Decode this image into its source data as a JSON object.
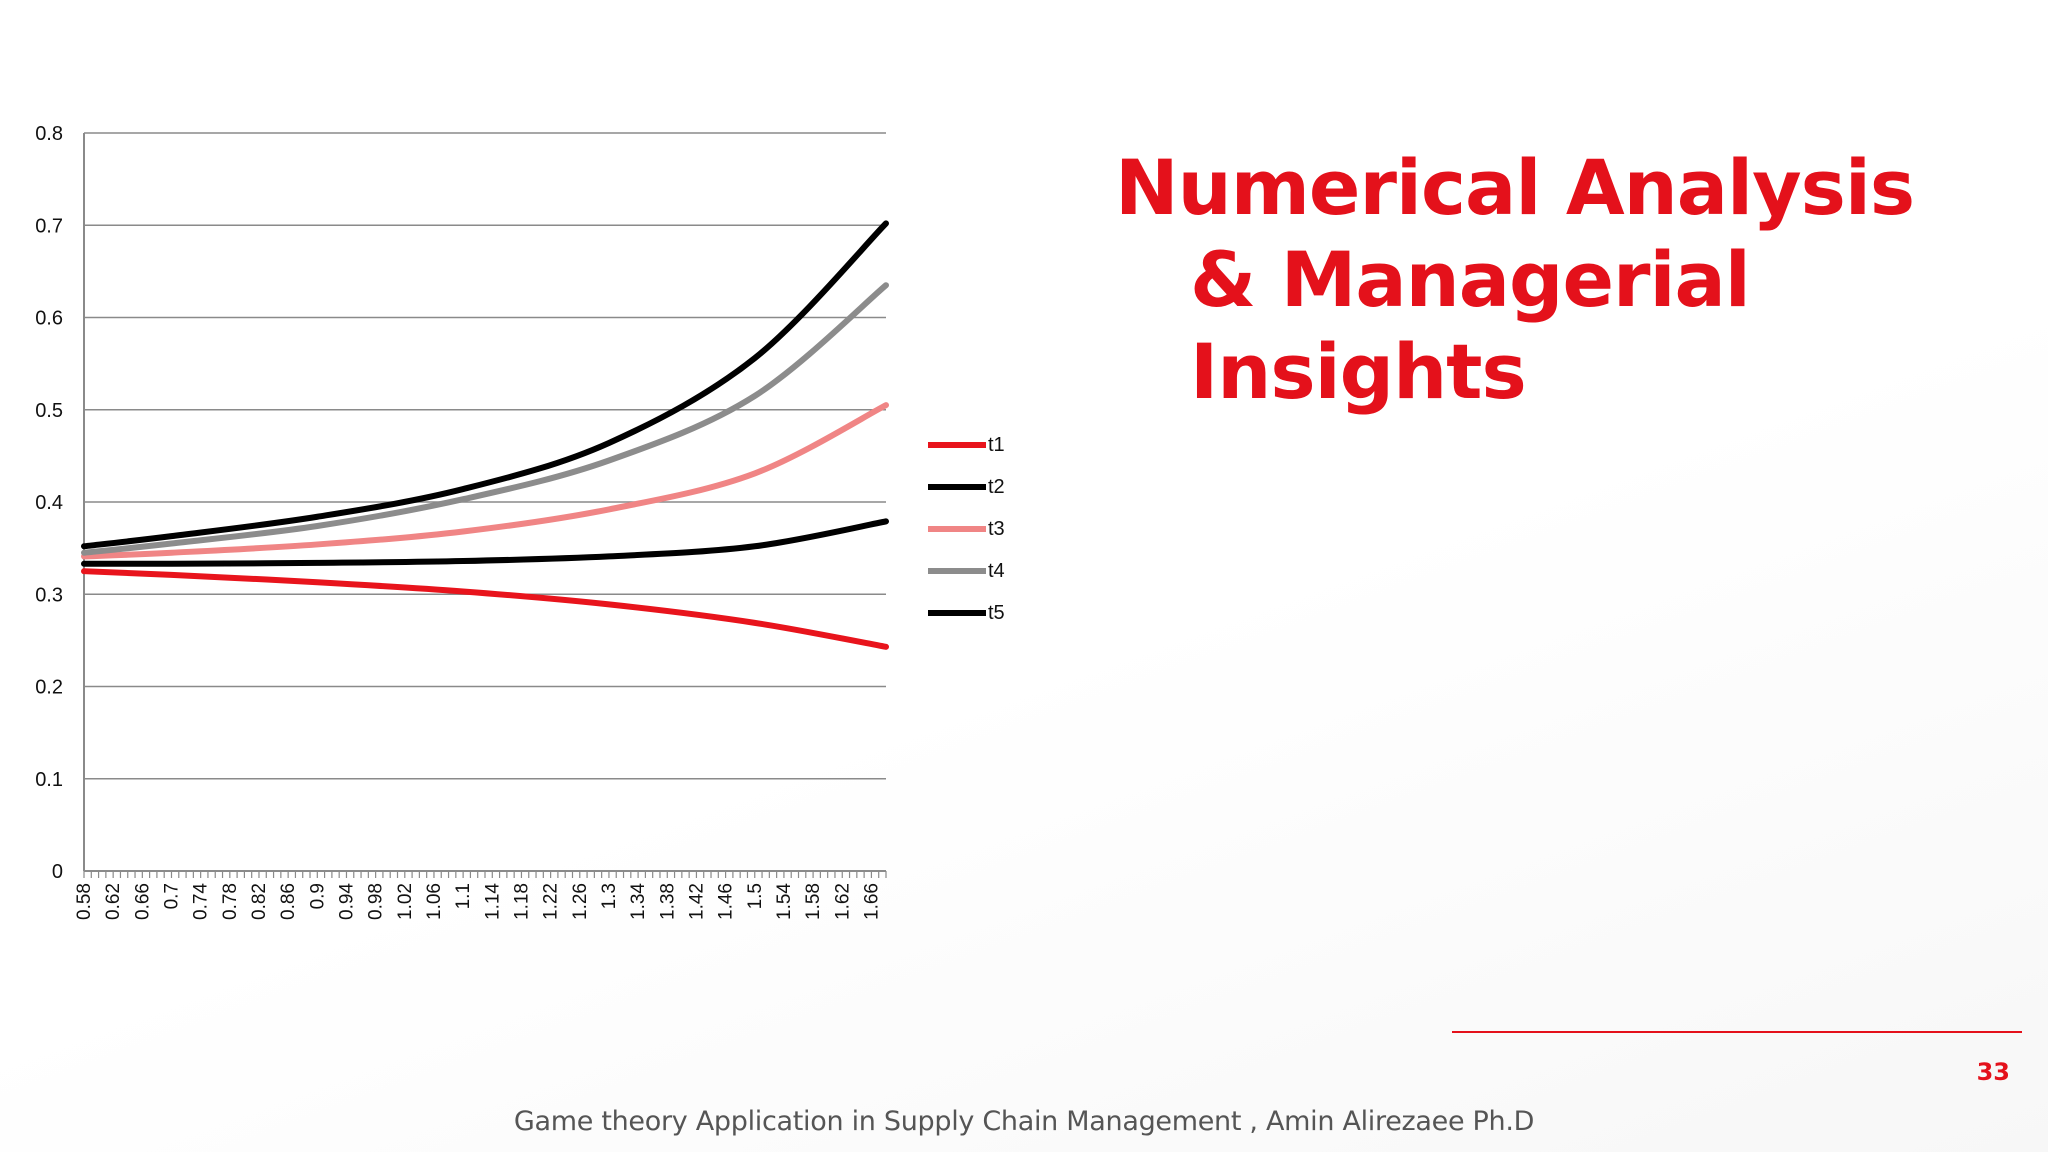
{
  "slide": {
    "title_line1": "Numerical Analysis",
    "title_line2": "& Managerial Insights",
    "page_number": "33",
    "footer": "Game theory Application in Supply Chain Management , Amin Alirezaee Ph.D"
  },
  "colors": {
    "accent": "#e4111b",
    "t1": "#e8141c",
    "t2": "#000000",
    "t3": "#f08585",
    "t4": "#8c8c8c",
    "t5": "#000000"
  },
  "chart_data": {
    "type": "line",
    "title": "",
    "xlabel": "",
    "ylabel": "",
    "ylim": [
      0,
      0.8
    ],
    "yticks": [
      "0",
      "0.1",
      "0.2",
      "0.3",
      "0.4",
      "0.5",
      "0.6",
      "0.7",
      "0.8"
    ],
    "x_start": 0.58,
    "x_step": 0.01,
    "x_end": 1.68,
    "x_tick_labels": [
      "0.58",
      "0.62",
      "0.66",
      "0.7",
      "0.74",
      "0.78",
      "0.82",
      "0.86",
      "0.9",
      "0.94",
      "0.98",
      "1.02",
      "1.06",
      "1.1",
      "1.14",
      "1.18",
      "1.22",
      "1.26",
      "1.3",
      "1.34",
      "1.38",
      "1.42",
      "1.46",
      "1.5",
      "1.54",
      "1.58",
      "1.62",
      "1.66"
    ],
    "grid": "horizontal",
    "legend_position": "right",
    "series": [
      {
        "name": "t1",
        "x": [
          0.58,
          0.7,
          0.9,
          1.1,
          1.3,
          1.5,
          1.68
        ],
        "values": [
          0.325,
          0.321,
          0.313,
          0.303,
          0.289,
          0.269,
          0.243
        ]
      },
      {
        "name": "t2",
        "x": [
          0.58,
          0.7,
          0.9,
          1.1,
          1.3,
          1.5,
          1.68
        ],
        "values": [
          0.333,
          0.333,
          0.334,
          0.336,
          0.341,
          0.352,
          0.379
        ]
      },
      {
        "name": "t3",
        "x": [
          0.58,
          0.7,
          0.9,
          1.1,
          1.3,
          1.5,
          1.68
        ],
        "values": [
          0.341,
          0.345,
          0.354,
          0.368,
          0.392,
          0.431,
          0.505
        ]
      },
      {
        "name": "t4",
        "x": [
          0.58,
          0.7,
          0.9,
          1.1,
          1.3,
          1.5,
          1.68
        ],
        "values": [
          0.345,
          0.355,
          0.374,
          0.403,
          0.445,
          0.515,
          0.635
        ]
      },
      {
        "name": "t5",
        "x": [
          0.58,
          0.7,
          0.9,
          1.1,
          1.3,
          1.5,
          1.68
        ],
        "values": [
          0.352,
          0.363,
          0.384,
          0.414,
          0.464,
          0.556,
          0.702
        ]
      }
    ]
  }
}
